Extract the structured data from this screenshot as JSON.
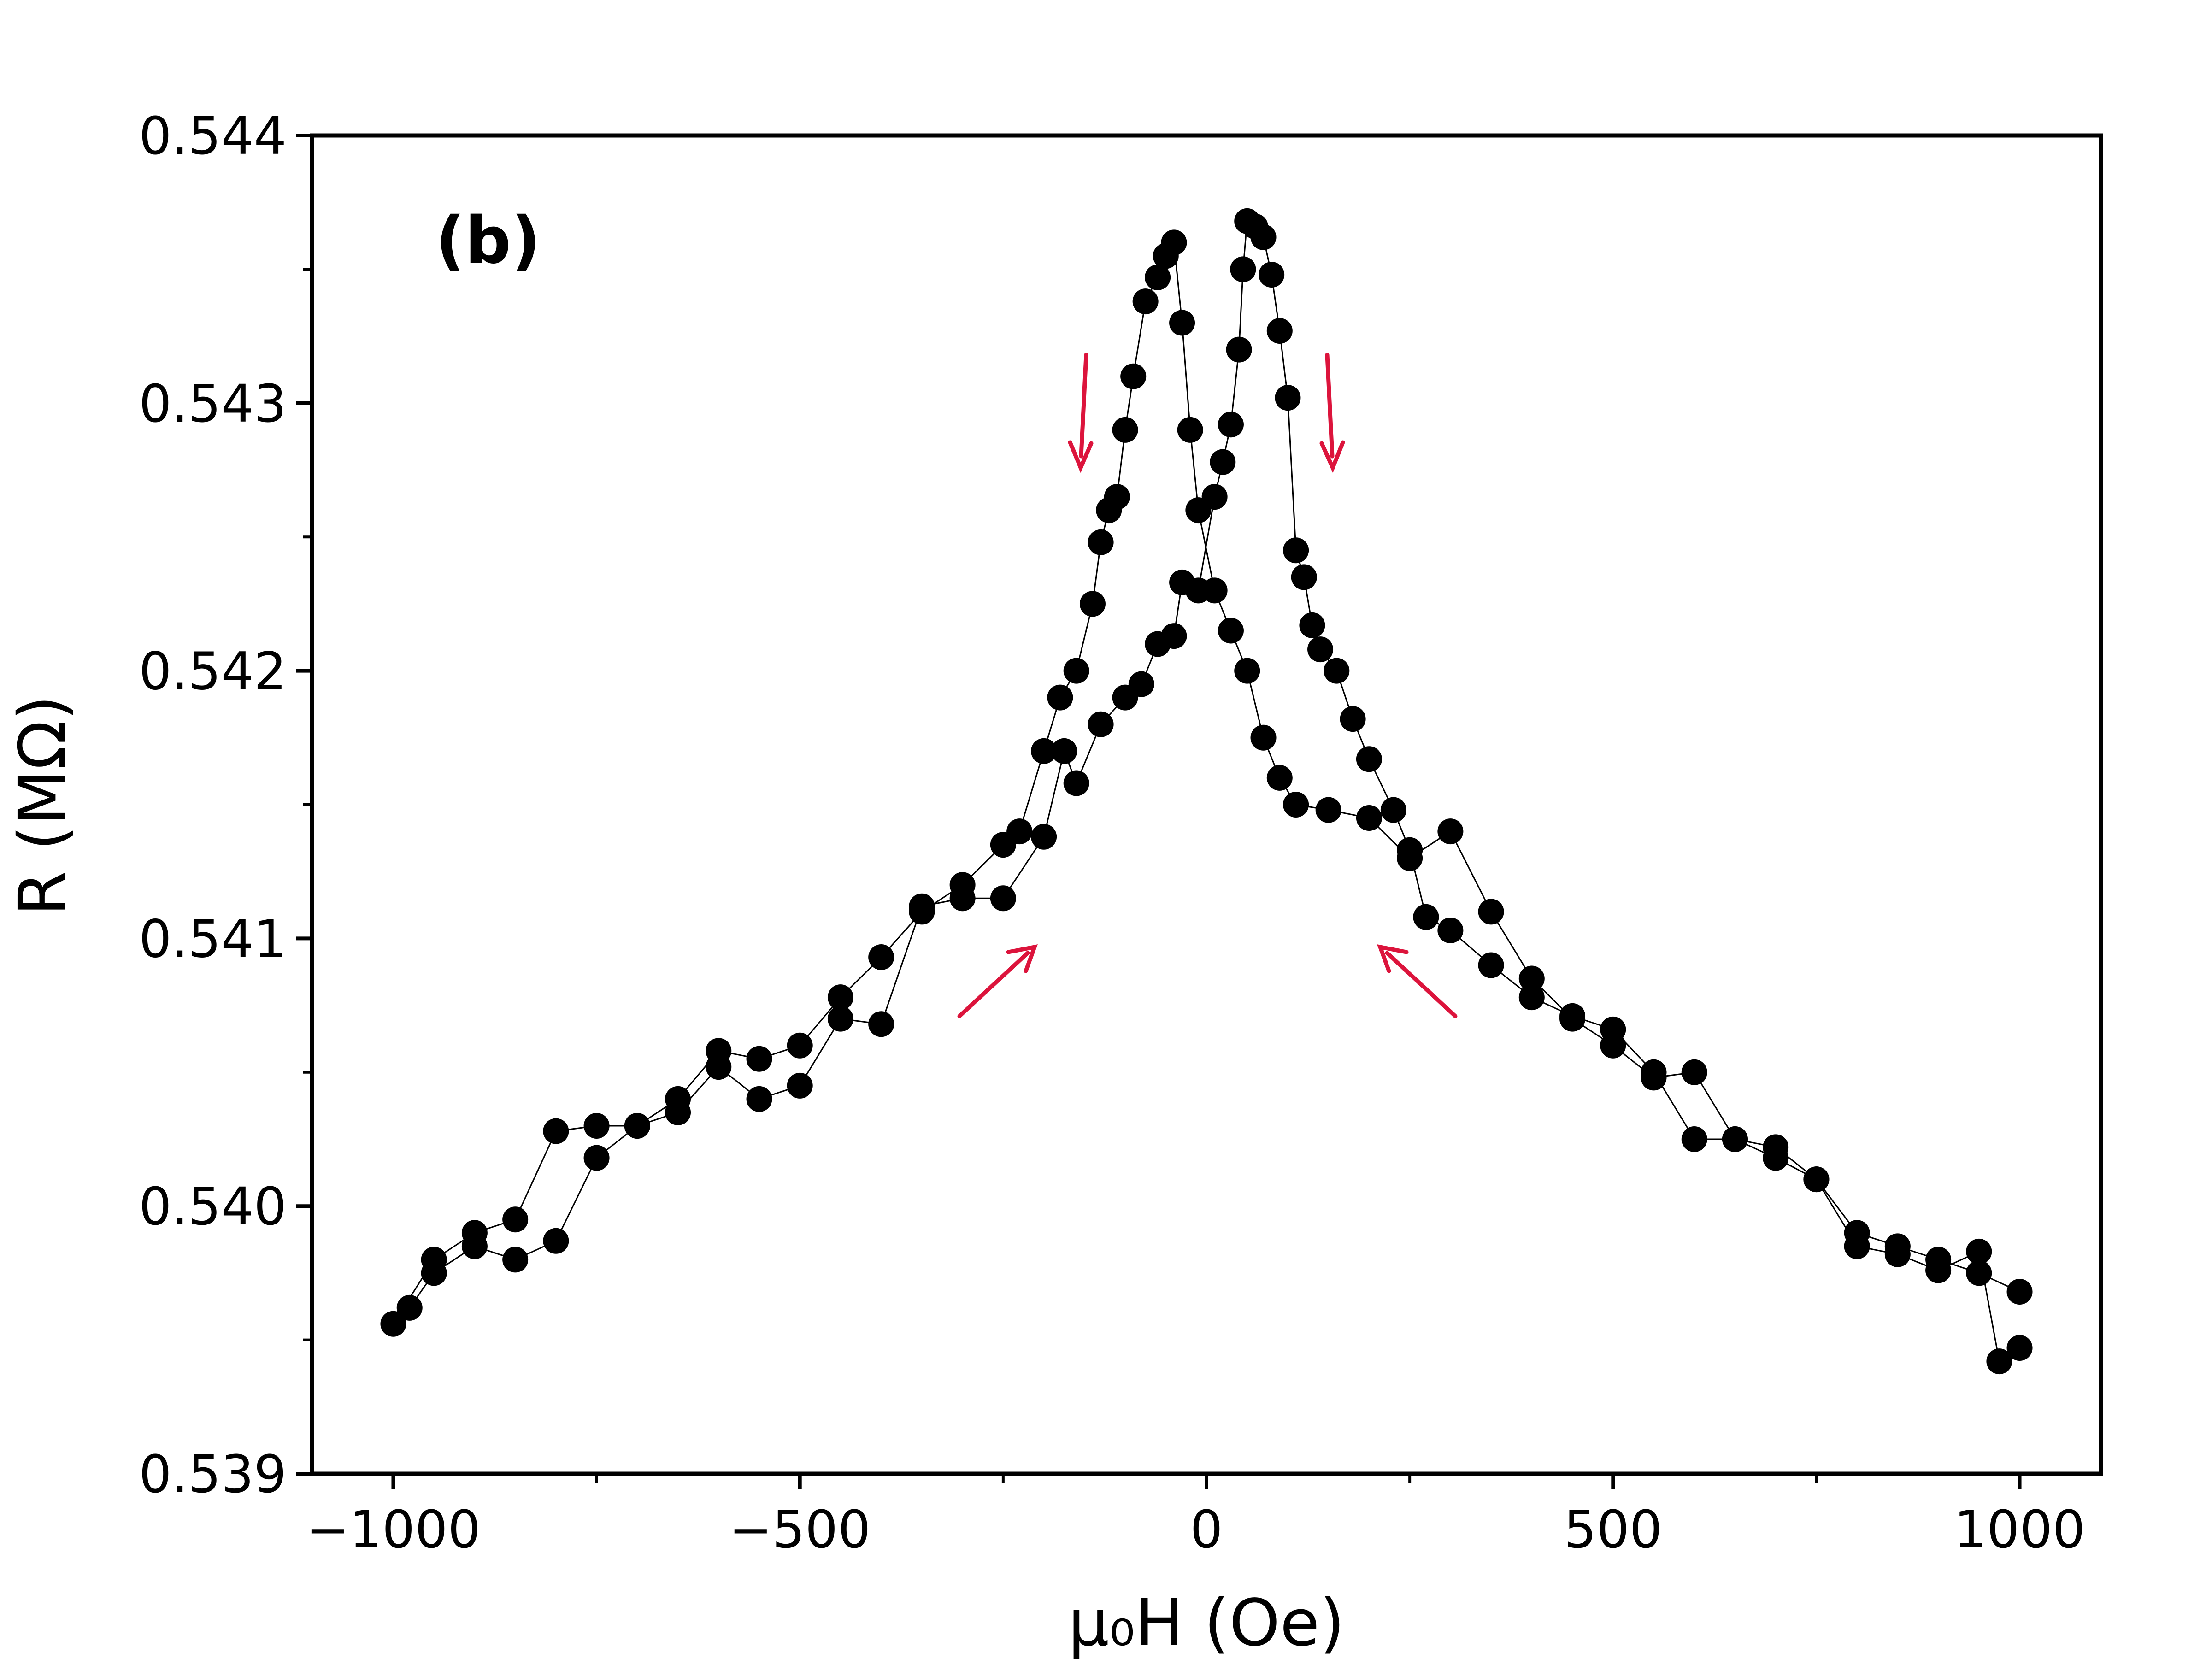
{
  "chart_data": {
    "type": "scatter",
    "annotation": "(b)",
    "xlabel": "μ₀H (Oe)",
    "ylabel": "R (MΩ)",
    "xlim": [
      -1100,
      1100
    ],
    "ylim": [
      0.539,
      0.544
    ],
    "xticks": [
      {
        "value": -1000,
        "label": "−1000"
      },
      {
        "value": -500,
        "label": "−500"
      },
      0,
      500,
      1000
    ],
    "yticks": [
      {
        "value": 0.539,
        "label": "0.539"
      },
      {
        "value": 0.54,
        "label": "0.540"
      },
      {
        "value": 0.541,
        "label": "0.541"
      },
      {
        "value": 0.542,
        "label": "0.542"
      },
      {
        "value": 0.543,
        "label": "0.543"
      },
      {
        "value": 0.544,
        "label": "0.544"
      }
    ],
    "xminorticks": [
      -750,
      -250,
      250,
      750
    ],
    "yminorticks": [
      0.5395,
      0.5405,
      0.5415,
      0.5425,
      0.5435
    ],
    "series": [
      {
        "color": "#000000",
        "x": [
          1000,
          950,
          900,
          850,
          800,
          750,
          700,
          650,
          600,
          550,
          500,
          450,
          400,
          350,
          300,
          250,
          200,
          150,
          110,
          90,
          70,
          50,
          30,
          10,
          -10,
          -20,
          -30,
          -40,
          -50,
          -60,
          -75,
          -90,
          -100,
          -110,
          -120,
          -130,
          -140,
          -160,
          -180,
          -200,
          -230,
          -250,
          -300,
          -350,
          -400,
          -450,
          -500,
          -550,
          -600,
          -650,
          -700,
          -750,
          -800,
          -850,
          -900,
          -950,
          -1000
        ],
        "values": [
          0.53968,
          0.53975,
          0.5398,
          0.53985,
          0.5399,
          0.5401,
          0.54022,
          0.54025,
          0.5405,
          0.54048,
          0.5406,
          0.5407,
          0.54085,
          0.5411,
          0.5414,
          0.5413,
          0.54145,
          0.54148,
          0.5415,
          0.5416,
          0.54175,
          0.542,
          0.54215,
          0.5423,
          0.5426,
          0.5429,
          0.5433,
          0.5436,
          0.54355,
          0.54347,
          0.54338,
          0.5431,
          0.5429,
          0.54265,
          0.5426,
          0.54248,
          0.54225,
          0.542,
          0.5419,
          0.5417,
          0.5414,
          0.54135,
          0.5412,
          0.5411,
          0.54093,
          0.54078,
          0.5406,
          0.54055,
          0.54058,
          0.5404,
          0.5403,
          0.5403,
          0.54028,
          0.53995,
          0.5399,
          0.5398,
          0.53956
        ]
      },
      {
        "color": "#000000",
        "x": [
          -980,
          -950,
          -900,
          -850,
          -800,
          -750,
          -700,
          -650,
          -600,
          -550,
          -500,
          -450,
          -400,
          -350,
          -300,
          -250,
          -200,
          -175,
          -160,
          -130,
          -100,
          -80,
          -60,
          -40,
          -30,
          -10,
          10,
          20,
          30,
          40,
          45,
          50,
          60,
          70,
          80,
          90,
          100,
          110,
          120,
          130,
          140,
          160,
          180,
          200,
          230,
          250,
          270,
          300,
          350,
          400,
          450,
          500,
          550,
          600,
          650,
          700,
          750,
          800,
          850,
          900,
          950,
          975,
          1000
        ],
        "values": [
          0.53962,
          0.53975,
          0.53985,
          0.5398,
          0.53987,
          0.54018,
          0.5403,
          0.54035,
          0.54052,
          0.5404,
          0.54045,
          0.5407,
          0.54068,
          0.54112,
          0.54115,
          0.54115,
          0.54138,
          0.5417,
          0.54158,
          0.5418,
          0.5419,
          0.54195,
          0.5421,
          0.54213,
          0.54233,
          0.5423,
          0.54265,
          0.54278,
          0.54292,
          0.5432,
          0.5435,
          0.54368,
          0.54366,
          0.54362,
          0.54348,
          0.54327,
          0.54302,
          0.54245,
          0.54235,
          0.54217,
          0.54208,
          0.542,
          0.54182,
          0.54167,
          0.54148,
          0.54133,
          0.54108,
          0.54103,
          0.5409,
          0.54078,
          0.54071,
          0.54066,
          0.5405,
          0.54025,
          0.54025,
          0.54018,
          0.5401,
          0.53985,
          0.53982,
          0.53976,
          0.53983,
          0.53942,
          0.53947
        ]
      }
    ]
  }
}
